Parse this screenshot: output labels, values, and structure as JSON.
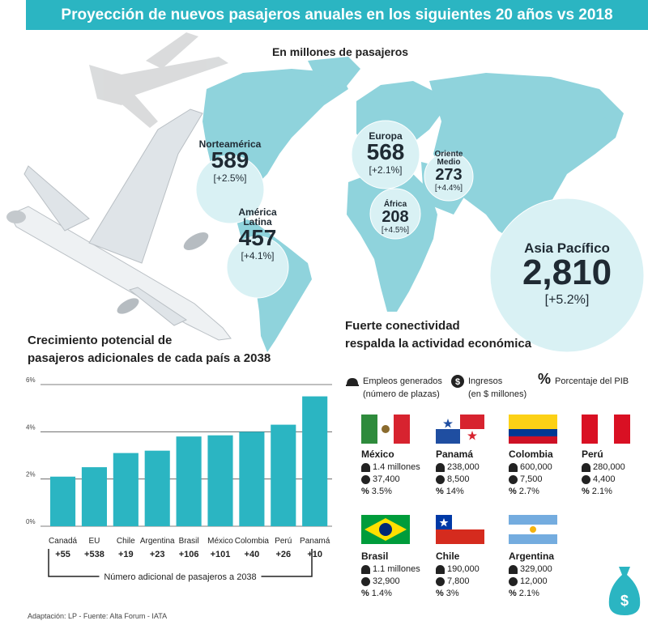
{
  "header": {
    "title": "Proyección de nuevos pasajeros anuales en los siguientes 20 años vs 2018",
    "subtitle": "En millones de pasajeros"
  },
  "regions": [
    {
      "name": "Norteamérica",
      "value": "589",
      "growth": "[+2.5%]"
    },
    {
      "name": "América Latina",
      "value": "457",
      "growth": "[+4.1%]"
    },
    {
      "name": "Europa",
      "value": "568",
      "growth": "[+2.1%]"
    },
    {
      "name": "Oriente Medio",
      "value": "273",
      "growth": "[+4.4%]"
    },
    {
      "name": "África",
      "value": "208",
      "growth": "[+4.5%]"
    },
    {
      "name": "Asia Pacífico",
      "value": "2,810",
      "growth": "[+5.2%]"
    }
  ],
  "colors": {
    "accent": "#2bb5c2",
    "map": "#8fd3dc",
    "circle": "#d9f1f4",
    "bar": "#2bb5c2"
  },
  "chart_data": {
    "type": "bar",
    "title": "Crecimiento potencial de pasajeros adicionales de cada país a 2038",
    "title_line1": "Crecimiento potencial de",
    "title_line2": "pasajeros adicionales de cada país a 2038",
    "categories": [
      "Canadá",
      "EU",
      "Chile",
      "Argentina",
      "Brasil",
      "México",
      "Colombia",
      "Perú",
      "Panamá"
    ],
    "values": [
      2.1,
      2.5,
      3.1,
      3.2,
      3.8,
      3.85,
      4.0,
      4.3,
      5.5
    ],
    "value_labels": [
      "+55",
      "+538",
      "+19",
      "+23",
      "+106",
      "+101",
      "+40",
      "+26",
      "+10"
    ],
    "yticks": [
      "0%",
      "2%",
      "4%",
      "6%"
    ],
    "ylim": [
      0,
      6
    ],
    "grid": true,
    "bracket_label": "Número adicional de pasajeros a 2038"
  },
  "connectivity": {
    "title_line1": "Fuerte conectividad",
    "title_line2": "respalda la actividad económica",
    "legend": [
      {
        "icon": "hardhat-icon",
        "label1": "Empleos generados",
        "label2": "(número de plazas)"
      },
      {
        "icon": "dollar-coin-icon",
        "label1": "Ingresos",
        "label2": "(en $ millones)"
      },
      {
        "icon": "percent-icon",
        "label1": "Porcentaje del PIB",
        "label2": ""
      }
    ],
    "countries": [
      {
        "name": "México",
        "jobs": "1.4 millones",
        "income": "37,400",
        "gdp": "3.5%"
      },
      {
        "name": "Panamá",
        "jobs": "238,000",
        "income": "8,500",
        "gdp": "14%"
      },
      {
        "name": "Colombia",
        "jobs": "600,000",
        "income": "7,500",
        "gdp": "2.7%"
      },
      {
        "name": "Perú",
        "jobs": "280,000",
        "income": "4,400",
        "gdp": "2.1%"
      },
      {
        "name": "Brasil",
        "jobs": "1.1 millones",
        "income": "32,900",
        "gdp": "1.4%"
      },
      {
        "name": "Chile",
        "jobs": "190,000",
        "income": "7,800",
        "gdp": "3%"
      },
      {
        "name": "Argentina",
        "jobs": "329,000",
        "income": "12,000",
        "gdp": "2.1%"
      }
    ]
  },
  "footer": {
    "source": "Adaptación: LP - Fuente: Alta Forum - IATA"
  }
}
